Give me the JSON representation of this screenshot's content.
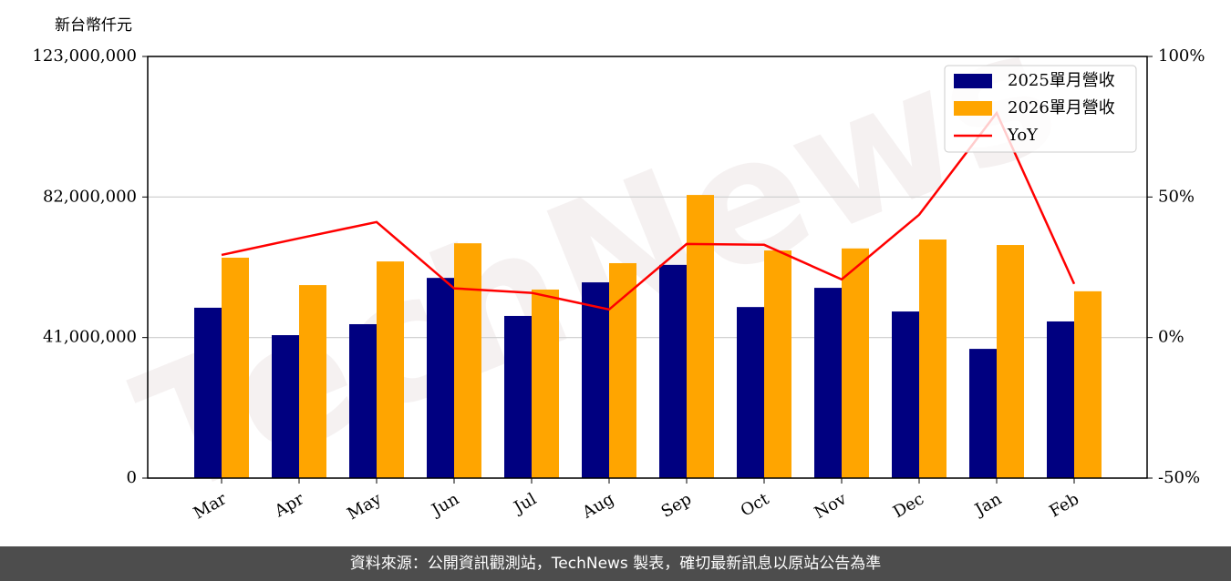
{
  "chart_data": {
    "type": "bar_line",
    "watermark": "TechNews",
    "ylabel": "新台幣仟元",
    "categories": [
      "Mar",
      "Apr",
      "May",
      "Jun",
      "Jul",
      "Aug",
      "Sep",
      "Oct",
      "Nov",
      "Dec",
      "Jan",
      "Feb"
    ],
    "series": [
      {
        "name": "2025單月營收",
        "color": "#000080",
        "type": "bar",
        "values": [
          49700000,
          41700000,
          44900000,
          58400000,
          47300000,
          57100000,
          62200000,
          49900000,
          55500000,
          48600000,
          37700000,
          45700000
        ]
      },
      {
        "name": "2026單月營收",
        "color": "#ffa500",
        "type": "bar",
        "values": [
          64300000,
          56300000,
          63200000,
          68500000,
          55000000,
          62700000,
          82600000,
          66400000,
          67000000,
          69600000,
          68000000,
          54500000
        ]
      },
      {
        "name": "YoY",
        "color": "#ff0000",
        "type": "line",
        "axis": "y2",
        "values": [
          29.4,
          35.3,
          41.1,
          17.5,
          15.9,
          10.0,
          33.3,
          33.0,
          20.7,
          43.7,
          79.9,
          19.1
        ]
      }
    ],
    "ylim": [
      0,
      123000000
    ],
    "yticks": [
      0,
      {
        "value": 41000000,
        "label": "41,000,000"
      },
      {
        "value": 82000000,
        "label": "82,000,000"
      },
      {
        "value": 123000000,
        "label": "123,000,000"
      }
    ],
    "y2lim": [
      -50,
      100
    ],
    "y2ticks": [
      {
        "value": -50,
        "label": "-50%"
      },
      {
        "value": 0,
        "label": "0%"
      },
      {
        "value": 50,
        "label": "50%"
      },
      {
        "value": 100,
        "label": "100%"
      }
    ],
    "grid": true,
    "legend": "upper right",
    "source": "資料來源：公開資訊觀測站，TechNews 製表，確切最新訊息以原站公告為準"
  }
}
